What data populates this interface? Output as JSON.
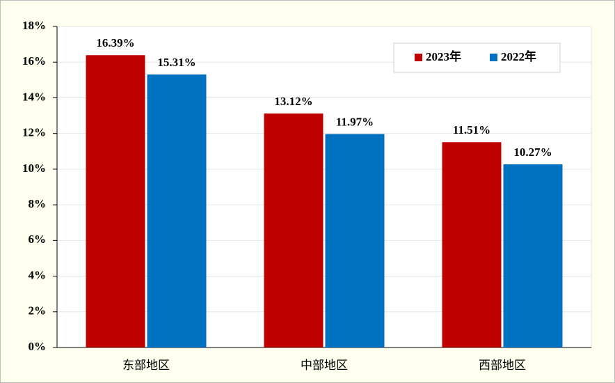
{
  "chart_data": {
    "type": "bar",
    "categories": [
      "东部地区",
      "中部地区",
      "西部地区"
    ],
    "series": [
      {
        "name": "2023年",
        "color": "#c00000",
        "values": [
          16.39,
          13.12,
          11.51
        ],
        "value_labels": [
          "16.39%",
          "13.12%",
          "11.51%"
        ]
      },
      {
        "name": "2022年",
        "color": "#0070c0",
        "values": [
          15.31,
          11.97,
          10.27
        ],
        "value_labels": [
          "15.31%",
          "11.97%",
          "10.27%"
        ]
      }
    ],
    "ylim": [
      0,
      18
    ],
    "yticks": [
      {
        "value": 0,
        "label": "0%"
      },
      {
        "value": 2,
        "label": "2%"
      },
      {
        "value": 4,
        "label": "4%"
      },
      {
        "value": 6,
        "label": "6%"
      },
      {
        "value": 8,
        "label": "8%"
      },
      {
        "value": 10,
        "label": "10%"
      },
      {
        "value": 12,
        "label": "12%"
      },
      {
        "value": 14,
        "label": "14%"
      },
      {
        "value": 16,
        "label": "16%"
      },
      {
        "value": 18,
        "label": "18%"
      }
    ],
    "grid": true,
    "legend": "top-right"
  }
}
